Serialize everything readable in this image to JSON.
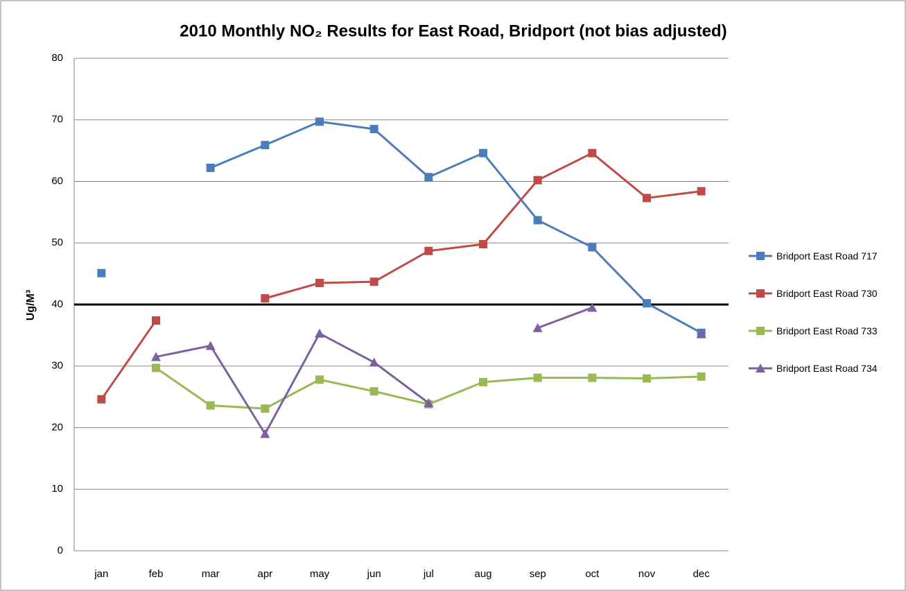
{
  "chart_data": {
    "type": "line",
    "title": "2010 Monthly NO₂ Results for East Road, Bridport (not bias adjusted)",
    "y_label": "Ug/M³",
    "categories": [
      "jan",
      "feb",
      "mar",
      "apr",
      "may",
      "jun",
      "jul",
      "aug",
      "sep",
      "oct",
      "nov",
      "dec"
    ],
    "series": [
      {
        "name": "Bridport East Road 717",
        "color": "#4a7ebb",
        "marker": "square",
        "values": [
          45.1,
          null,
          62.2,
          65.9,
          69.7,
          68.5,
          60.7,
          64.6,
          53.7,
          49.3,
          40.2,
          35.4
        ]
      },
      {
        "name": "Bridport East Road 730",
        "color": "#be4b48",
        "marker": "square",
        "values": [
          24.6,
          37.4,
          null,
          41.0,
          43.5,
          43.7,
          48.7,
          49.8,
          60.2,
          64.6,
          57.3,
          58.4
        ]
      },
      {
        "name": "Bridport East Road 733",
        "color": "#98b954",
        "marker": "square",
        "values": [
          null,
          29.7,
          23.6,
          23.1,
          27.8,
          25.9,
          23.8,
          27.4,
          28.1,
          28.1,
          28.0,
          28.3
        ]
      },
      {
        "name": "Bridport East Road 734",
        "color": "#7d60a0",
        "marker": "triangle",
        "values": [
          null,
          31.5,
          33.3,
          19.0,
          35.3,
          30.6,
          24.0,
          null,
          36.2,
          39.5,
          null,
          35.2
        ]
      }
    ],
    "reference_line": 40,
    "ylim": [
      0,
      80
    ],
    "yticks": [
      0,
      10,
      20,
      30,
      40,
      50,
      60,
      70,
      80
    ],
    "grid": true
  }
}
